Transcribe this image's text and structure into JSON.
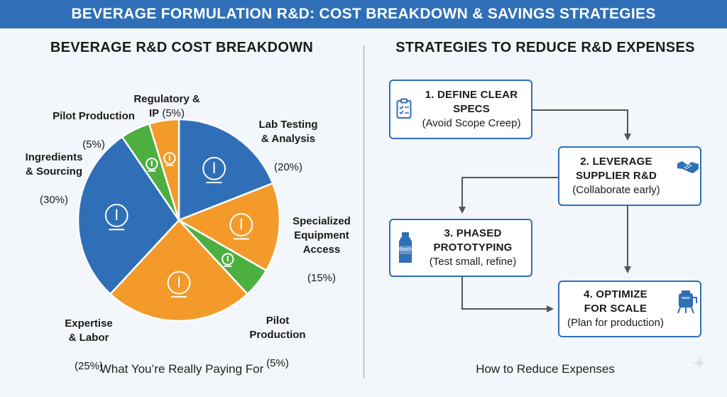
{
  "header": {
    "title": "BEVERAGE FORMULATION R&D: COST BREAKDOWN & SAVINGS STRATEGIES"
  },
  "left_panel": {
    "title": "BEVERAGE R&D COST BREAKDOWN",
    "caption": "What You’re Really Paying For"
  },
  "right_panel": {
    "title": "STRATEGIES TO REDUCE R&D EXPENSES",
    "caption": "How to Reduce Expenses",
    "steps": [
      {
        "title": "1. DEFINE CLEAR\nSPECS",
        "subtitle": "(Avoid Scope Creep)",
        "icon": "clipboard-checklist-icon"
      },
      {
        "title": "2. LEVERAGE\nSUPPLIER R&D",
        "subtitle": "(Collaborate early)",
        "icon": "handshake-icon"
      },
      {
        "title": "3. PHASED\nPROTOTYPING",
        "subtitle": "(Test small, refine)",
        "icon": "batch-bottle-icon",
        "icon_text": "Batch"
      },
      {
        "title": "4. OPTIMIZE\nFOR SCALE",
        "subtitle": "(Plan for production)",
        "icon": "production-tank-icon"
      }
    ]
  },
  "chart_data": {
    "type": "pie",
    "slices": [
      {
        "label": "Lab Testing\n& Analysis",
        "value_text": "(20%)",
        "value": 20,
        "color": "#2f6fb7",
        "icon": "microscope-icon"
      },
      {
        "label": "Specialized\nEquipment\nAccess",
        "value_text": "(15%)",
        "value": 15,
        "color": "#f39a2b",
        "icon": "gears-icon"
      },
      {
        "label": "Pilot\nProduction",
        "value_text": "(5%)",
        "value": 5,
        "color": "#4caf3f",
        "icon": "microscope-icon"
      },
      {
        "label": "Expertise\n& Labor",
        "value_text": "(25%)",
        "value": 25,
        "color": "#f39a2b",
        "icon": "lightbulb-head-icon"
      },
      {
        "label": "Ingredients\n& Sourcing",
        "value_text": "(30%)",
        "value": 30,
        "color": "#2f6fb7",
        "icon": "lab-glassware-icon"
      },
      {
        "label": "Pilot Production",
        "value_text": "(5%)",
        "value": 5,
        "color": "#4caf3f",
        "icon": "flask-icon"
      },
      {
        "label": "Regulatory &\nIP",
        "value_text": "(5%)",
        "value": 5,
        "color": "#f39a2b",
        "icon": "magnifier-icon"
      }
    ]
  },
  "colors": {
    "primary": "#2f6fb7",
    "orange": "#f39a2b",
    "green": "#4caf3f",
    "banner": "#2f6fb7"
  }
}
